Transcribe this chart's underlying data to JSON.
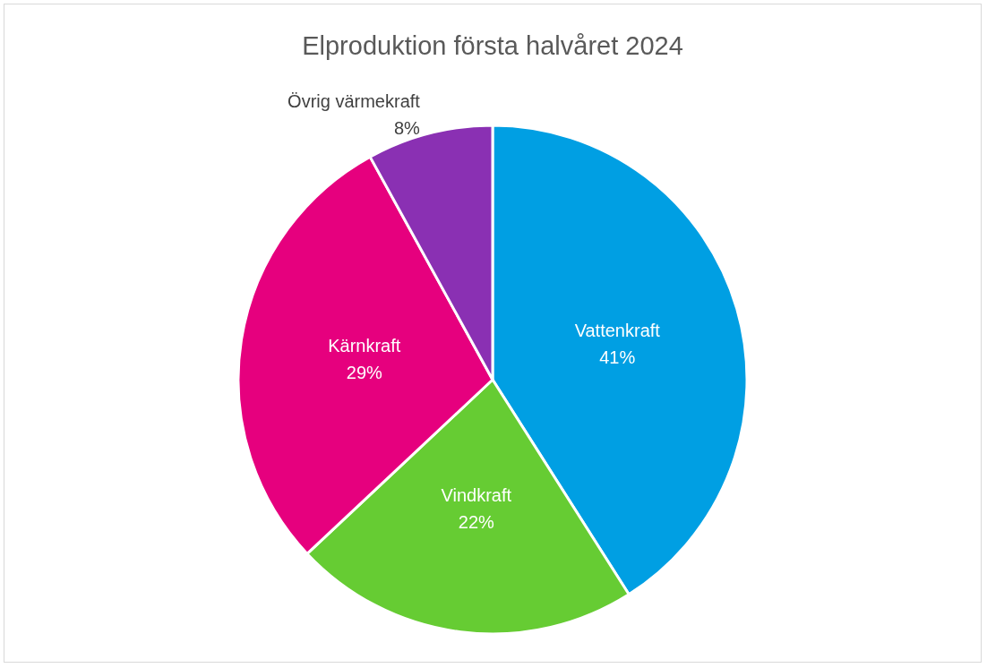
{
  "chart_data": {
    "type": "pie",
    "title": "Elproduktion första halvåret 2024",
    "categories": [
      "Vattenkraft",
      "Vindkraft",
      "Kärnkraft",
      "Övrig värmekraft"
    ],
    "values": [
      41,
      22,
      29,
      8
    ],
    "value_labels": [
      "41%",
      "22%",
      "29%",
      "8%"
    ],
    "colors": [
      "#009fe3",
      "#66cc33",
      "#e6007e",
      "#8a30b3"
    ],
    "legend": false
  }
}
